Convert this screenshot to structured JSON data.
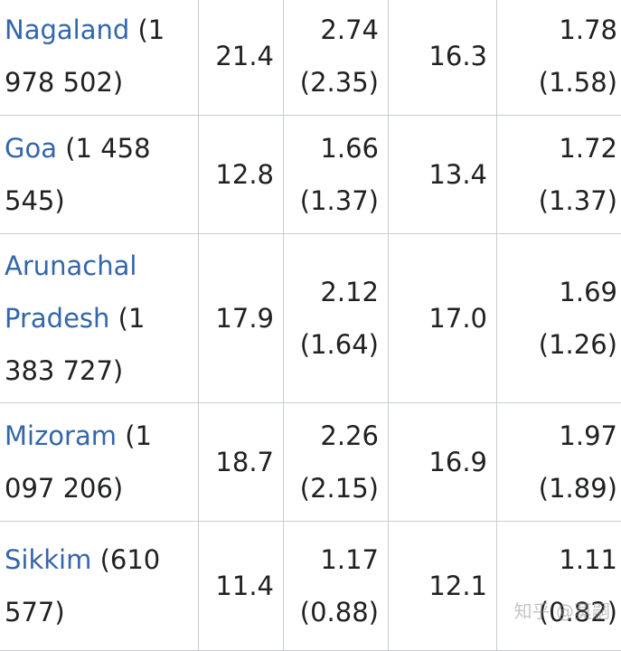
{
  "rows": [
    {
      "state": "Nagaland",
      "population": " (1 978 502)",
      "col1": "21.4",
      "col2_value": "2.74",
      "col2_sub": "(2.35)",
      "col3": "16.3",
      "col4_value": "1.78",
      "col4_sub": "(1.58)"
    },
    {
      "state": "Goa",
      "population": " (1 458 545)",
      "col1": "12.8",
      "col2_value": "1.66",
      "col2_sub": "(1.37)",
      "col3": "13.4",
      "col4_value": "1.72",
      "col4_sub": "(1.37)"
    },
    {
      "state": "Arunachal Pradesh",
      "population": " (1 383 727)",
      "col1": "17.9",
      "col2_value": "2.12",
      "col2_sub": "(1.64)",
      "col3": "17.0",
      "col4_value": "1.69",
      "col4_sub": "(1.26)"
    },
    {
      "state": "Mizoram",
      "population": " (1 097 206)",
      "col1": "18.7",
      "col2_value": "2.26",
      "col2_sub": "(2.15)",
      "col3": "16.9",
      "col4_value": "1.97",
      "col4_sub": "(1.89)"
    },
    {
      "state": "Sikkim",
      "population": " (610 577)",
      "col1": "11.4",
      "col2_value": "1.17",
      "col2_sub": "(0.88)",
      "col3": "12.1",
      "col4_value": "1.11",
      "col4_sub": "(0.82)"
    }
  ],
  "watermark": "知乎 @莫嗣"
}
